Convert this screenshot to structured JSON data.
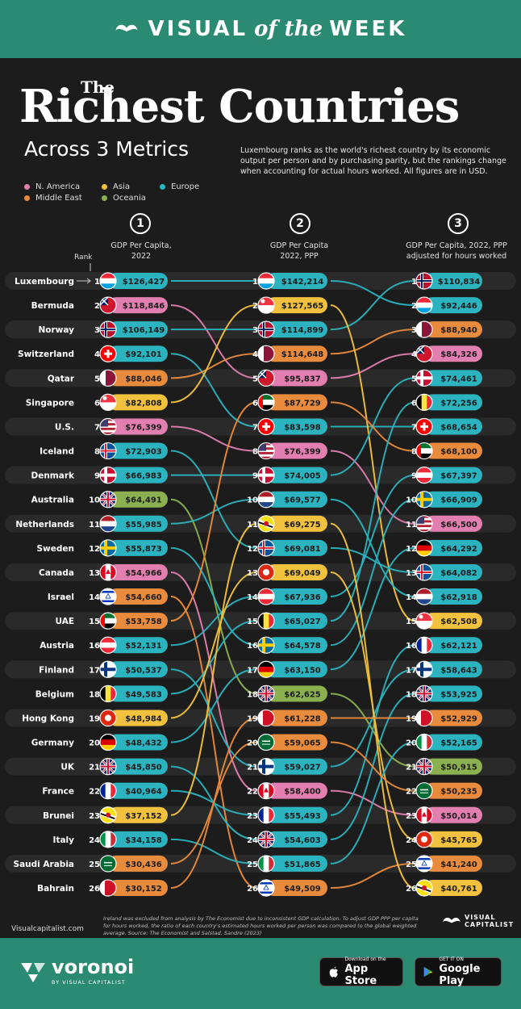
{
  "banner": {
    "pre": "VISUAL",
    "of": "of the",
    "post": "WEEK"
  },
  "title": {
    "the": "The",
    "main": "Richest Countries",
    "subtitle": "Across 3 Metrics"
  },
  "description": "Luxembourg ranks as the world's richest country by its economic output per person and by purchasing parity, but the rankings change when accounting for actual hours worked. All figures are in USD.",
  "legend": [
    {
      "label": "N. America",
      "color": "#e27fb0"
    },
    {
      "label": "Asia",
      "color": "#f2c23e"
    },
    {
      "label": "Europe",
      "color": "#2bb3bf"
    },
    {
      "label": "Middle East",
      "color": "#e98b3c"
    },
    {
      "label": "Oceania",
      "color": "#8bb04f"
    }
  ],
  "rank_label": "Rank",
  "columns": [
    {
      "num": "1",
      "head1": "GDP Per Capita,",
      "head2": "2022"
    },
    {
      "num": "2",
      "head1": "GDP Per Capita",
      "head2": "2022, PPP"
    },
    {
      "num": "3",
      "head1": "GDP Per Capita, 2022, PPP",
      "head2": "adjusted for hours worked"
    }
  ],
  "footer": {
    "source_site": "Visualcapitalist.com",
    "note": "Ireland was excluded from analysis by The Economist due to inconsistent GDP calculation. To adjust GDP PPP per capita for hours worked, the ratio of each country's estimated hours worked per person was compared to the global weighted average. Source: The Economist and Salstad, Sandre (2023)",
    "vc_line1": "VISUAL",
    "vc_line2": "CAPITALIST"
  },
  "bottom": {
    "brand": "voronoi",
    "brand_sub": "BY VISUAL CAPITALIST",
    "appstore_small": "Download on the",
    "appstore_big": "App Store",
    "google_small": "GET IT ON",
    "google_big": "Google Play"
  },
  "region_colors": {
    "NA": "#e27fb0",
    "AS": "#f2c23e",
    "EU": "#2bb3bf",
    "ME": "#e98b3c",
    "OC": "#8bb04f"
  },
  "chart_data": {
    "type": "table",
    "metrics": [
      "GDP Per Capita, 2022",
      "GDP Per Capita 2022, PPP",
      "GDP Per Capita, 2022, PPP adjusted for hours worked"
    ],
    "countries": [
      {
        "name": "Luxembourg",
        "region": "EU",
        "flag": "lu",
        "ranks": [
          1,
          1,
          2
        ],
        "values": [
          "$126,427",
          "$142,214",
          "$92,446"
        ]
      },
      {
        "name": "Bermuda",
        "region": "NA",
        "flag": "bm",
        "ranks": [
          2,
          5,
          4
        ],
        "values": [
          "$118,846",
          "$95,837",
          "$84,326"
        ]
      },
      {
        "name": "Norway",
        "region": "EU",
        "flag": "no",
        "ranks": [
          3,
          3,
          1
        ],
        "values": [
          "$106,149",
          "$114,899",
          "$110,834"
        ]
      },
      {
        "name": "Switzerland",
        "region": "EU",
        "flag": "ch",
        "ranks": [
          4,
          7,
          7
        ],
        "values": [
          "$92,101",
          "$83,598",
          "$68,654"
        ]
      },
      {
        "name": "Qatar",
        "region": "ME",
        "flag": "qa",
        "ranks": [
          5,
          4,
          3
        ],
        "values": [
          "$88,046",
          "$114,648",
          "$88,940"
        ]
      },
      {
        "name": "Singapore",
        "region": "AS",
        "flag": "sg",
        "ranks": [
          6,
          2,
          15
        ],
        "values": [
          "$82,808",
          "$127,565",
          "$62,508"
        ]
      },
      {
        "name": "U.S.",
        "region": "NA",
        "flag": "us",
        "ranks": [
          7,
          8,
          11
        ],
        "values": [
          "$76,399",
          "$76,399",
          "$66,500"
        ]
      },
      {
        "name": "Iceland",
        "region": "EU",
        "flag": "is",
        "ranks": [
          8,
          12,
          13
        ],
        "values": [
          "$72,903",
          "$69,081",
          "$64,082"
        ]
      },
      {
        "name": "Denmark",
        "region": "EU",
        "flag": "dk",
        "ranks": [
          9,
          9,
          5
        ],
        "values": [
          "$66,983",
          "$74,005",
          "$74,461"
        ]
      },
      {
        "name": "Australia",
        "region": "OC",
        "flag": "au",
        "ranks": [
          10,
          18,
          21
        ],
        "values": [
          "$64,491",
          "$62,625",
          "$50,915"
        ]
      },
      {
        "name": "Netherlands",
        "region": "EU",
        "flag": "nl",
        "ranks": [
          11,
          10,
          14
        ],
        "values": [
          "$55,985",
          "$69,577",
          "$62,918"
        ]
      },
      {
        "name": "Sweden",
        "region": "EU",
        "flag": "se",
        "ranks": [
          12,
          16,
          10
        ],
        "values": [
          "$55,873",
          "$64,578",
          "$66,909"
        ]
      },
      {
        "name": "Canada",
        "region": "NA",
        "flag": "ca",
        "ranks": [
          13,
          22,
          23
        ],
        "values": [
          "$54,966",
          "$58,400",
          "$50,014"
        ]
      },
      {
        "name": "Israel",
        "region": "ME",
        "flag": "il",
        "ranks": [
          14,
          26,
          25
        ],
        "values": [
          "$54,660",
          "$49,509",
          "$41,240"
        ]
      },
      {
        "name": "UAE",
        "region": "ME",
        "flag": "ae",
        "ranks": [
          15,
          6,
          8
        ],
        "values": [
          "$53,758",
          "$87,729",
          "$68,100"
        ]
      },
      {
        "name": "Austria",
        "region": "EU",
        "flag": "at",
        "ranks": [
          16,
          14,
          9
        ],
        "values": [
          "$52,131",
          "$67,936",
          "$67,397"
        ]
      },
      {
        "name": "Finland",
        "region": "EU",
        "flag": "fi",
        "ranks": [
          17,
          21,
          17
        ],
        "values": [
          "$50,537",
          "$59,027",
          "$58,643"
        ]
      },
      {
        "name": "Belgium",
        "region": "EU",
        "flag": "be",
        "ranks": [
          18,
          15,
          6
        ],
        "values": [
          "$49,583",
          "$65,027",
          "$72,256"
        ]
      },
      {
        "name": "Hong Kong",
        "region": "AS",
        "flag": "hk",
        "ranks": [
          19,
          13,
          24
        ],
        "values": [
          "$48,984",
          "$69,049",
          "$45,765"
        ]
      },
      {
        "name": "Germany",
        "region": "EU",
        "flag": "de",
        "ranks": [
          20,
          17,
          12
        ],
        "values": [
          "$48,432",
          "$63,150",
          "$64,292"
        ]
      },
      {
        "name": "UK",
        "region": "EU",
        "flag": "gb",
        "ranks": [
          21,
          24,
          18
        ],
        "values": [
          "$45,850",
          "$54,603",
          "$53,925"
        ]
      },
      {
        "name": "France",
        "region": "EU",
        "flag": "fr",
        "ranks": [
          22,
          23,
          16
        ],
        "values": [
          "$40,964",
          "$55,493",
          "$62,121"
        ]
      },
      {
        "name": "Brunei",
        "region": "AS",
        "flag": "bn",
        "ranks": [
          23,
          11,
          26
        ],
        "values": [
          "$37,152",
          "$69,275",
          "$40,761"
        ]
      },
      {
        "name": "Italy",
        "region": "EU",
        "flag": "it",
        "ranks": [
          24,
          25,
          20
        ],
        "values": [
          "$34,158",
          "$51,865",
          "$52,165"
        ]
      },
      {
        "name": "Saudi Arabia",
        "region": "ME",
        "flag": "sa",
        "ranks": [
          25,
          20,
          22
        ],
        "values": [
          "$30,436",
          "$59,065",
          "$50,235"
        ]
      },
      {
        "name": "Bahrain",
        "region": "ME",
        "flag": "bh",
        "ranks": [
          26,
          19,
          19
        ],
        "values": [
          "$30,152",
          "$61,228",
          "$52,929"
        ]
      }
    ]
  }
}
